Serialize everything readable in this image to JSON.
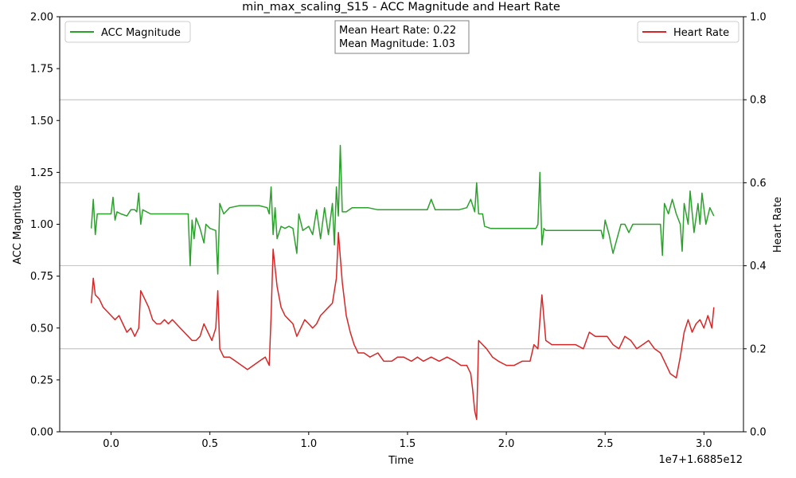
{
  "chart_data": {
    "type": "line",
    "title": "min_max_scaling_S15 - ACC Magnitude and Heart Rate",
    "xlabel": "Time",
    "x_offset_label": "1e7+1.6885e12",
    "ylabel_left": "ACC Magnitude",
    "ylabel_right": "Heart Rate",
    "xlim": [
      -0.26,
      3.2
    ],
    "ylim_left": [
      0,
      2.0
    ],
    "ylim_right": [
      0,
      1.0
    ],
    "x_ticks": [
      0.0,
      0.5,
      1.0,
      1.5,
      2.0,
      2.5,
      3.0
    ],
    "x_tick_labels": [
      "0.0",
      "0.5",
      "1.0",
      "1.5",
      "2.0",
      "2.5",
      "3.0"
    ],
    "y_left_ticks": [
      0.0,
      0.25,
      0.5,
      0.75,
      1.0,
      1.25,
      1.5,
      1.75,
      2.0
    ],
    "y_left_tick_labels": [
      "0.00",
      "0.25",
      "0.50",
      "0.75",
      "1.00",
      "1.25",
      "1.50",
      "1.75",
      "2.00"
    ],
    "y_right_ticks": [
      0.0,
      0.2,
      0.4,
      0.6,
      0.8,
      1.0
    ],
    "y_right_tick_labels": [
      "0.0",
      "0.2",
      "0.4",
      "0.6",
      "0.8",
      "1.0"
    ],
    "grid": "horizontal lines at right-axis ticks",
    "annotation": {
      "lines": [
        "Mean Heart Rate: 0.22",
        "Mean Magnitude: 1.03"
      ],
      "placement": "top-center"
    },
    "series": [
      {
        "name": "ACC Magnitude",
        "axis": "left",
        "color": "#2ca02c",
        "legend_placement": "top-left",
        "points": [
          [
            -0.1,
            0.98
          ],
          [
            -0.09,
            1.12
          ],
          [
            -0.08,
            0.95
          ],
          [
            -0.07,
            1.05
          ],
          [
            -0.04,
            1.05
          ],
          [
            0.0,
            1.05
          ],
          [
            0.01,
            1.13
          ],
          [
            0.02,
            1.02
          ],
          [
            0.03,
            1.06
          ],
          [
            0.05,
            1.05
          ],
          [
            0.08,
            1.04
          ],
          [
            0.1,
            1.07
          ],
          [
            0.12,
            1.07
          ],
          [
            0.13,
            1.06
          ],
          [
            0.14,
            1.15
          ],
          [
            0.15,
            1.0
          ],
          [
            0.16,
            1.07
          ],
          [
            0.2,
            1.05
          ],
          [
            0.25,
            1.05
          ],
          [
            0.3,
            1.05
          ],
          [
            0.35,
            1.05
          ],
          [
            0.39,
            1.05
          ],
          [
            0.4,
            0.8
          ],
          [
            0.41,
            1.02
          ],
          [
            0.42,
            0.93
          ],
          [
            0.43,
            1.03
          ],
          [
            0.45,
            0.98
          ],
          [
            0.47,
            0.91
          ],
          [
            0.48,
            1.0
          ],
          [
            0.5,
            0.98
          ],
          [
            0.53,
            0.97
          ],
          [
            0.54,
            0.76
          ],
          [
            0.55,
            1.1
          ],
          [
            0.57,
            1.05
          ],
          [
            0.6,
            1.08
          ],
          [
            0.65,
            1.09
          ],
          [
            0.7,
            1.09
          ],
          [
            0.75,
            1.09
          ],
          [
            0.79,
            1.08
          ],
          [
            0.8,
            1.05
          ],
          [
            0.81,
            1.18
          ],
          [
            0.82,
            0.95
          ],
          [
            0.83,
            1.08
          ],
          [
            0.84,
            0.93
          ],
          [
            0.86,
            0.99
          ],
          [
            0.88,
            0.98
          ],
          [
            0.9,
            0.99
          ],
          [
            0.92,
            0.98
          ],
          [
            0.94,
            0.86
          ],
          [
            0.95,
            1.05
          ],
          [
            0.97,
            0.97
          ],
          [
            1.0,
            0.99
          ],
          [
            1.02,
            0.95
          ],
          [
            1.04,
            1.07
          ],
          [
            1.06,
            0.93
          ],
          [
            1.08,
            1.08
          ],
          [
            1.1,
            0.95
          ],
          [
            1.12,
            1.1
          ],
          [
            1.13,
            0.9
          ],
          [
            1.14,
            1.18
          ],
          [
            1.15,
            1.04
          ],
          [
            1.16,
            1.38
          ],
          [
            1.17,
            1.06
          ],
          [
            1.19,
            1.06
          ],
          [
            1.22,
            1.08
          ],
          [
            1.26,
            1.08
          ],
          [
            1.3,
            1.08
          ],
          [
            1.35,
            1.07
          ],
          [
            1.4,
            1.07
          ],
          [
            1.45,
            1.07
          ],
          [
            1.5,
            1.07
          ],
          [
            1.55,
            1.07
          ],
          [
            1.6,
            1.07
          ],
          [
            1.62,
            1.12
          ],
          [
            1.64,
            1.07
          ],
          [
            1.7,
            1.07
          ],
          [
            1.76,
            1.07
          ],
          [
            1.8,
            1.08
          ],
          [
            1.82,
            1.12
          ],
          [
            1.84,
            1.06
          ],
          [
            1.85,
            1.2
          ],
          [
            1.86,
            1.05
          ],
          [
            1.88,
            1.05
          ],
          [
            1.89,
            0.99
          ],
          [
            1.92,
            0.98
          ],
          [
            1.95,
            0.98
          ],
          [
            1.98,
            0.98
          ],
          [
            2.0,
            0.98
          ],
          [
            2.05,
            0.98
          ],
          [
            2.1,
            0.98
          ],
          [
            2.15,
            0.98
          ],
          [
            2.16,
            1.0
          ],
          [
            2.17,
            1.25
          ],
          [
            2.18,
            0.9
          ],
          [
            2.19,
            0.98
          ],
          [
            2.2,
            0.97
          ],
          [
            2.25,
            0.97
          ],
          [
            2.3,
            0.97
          ],
          [
            2.35,
            0.97
          ],
          [
            2.4,
            0.97
          ],
          [
            2.45,
            0.97
          ],
          [
            2.48,
            0.97
          ],
          [
            2.49,
            0.93
          ],
          [
            2.5,
            1.02
          ],
          [
            2.52,
            0.95
          ],
          [
            2.54,
            0.86
          ],
          [
            2.56,
            0.93
          ],
          [
            2.58,
            1.0
          ],
          [
            2.6,
            1.0
          ],
          [
            2.62,
            0.96
          ],
          [
            2.64,
            1.0
          ],
          [
            2.66,
            1.0
          ],
          [
            2.7,
            1.0
          ],
          [
            2.75,
            1.0
          ],
          [
            2.78,
            1.0
          ],
          [
            2.79,
            0.85
          ],
          [
            2.8,
            1.1
          ],
          [
            2.82,
            1.05
          ],
          [
            2.84,
            1.12
          ],
          [
            2.86,
            1.05
          ],
          [
            2.88,
            1.0
          ],
          [
            2.89,
            0.87
          ],
          [
            2.9,
            1.1
          ],
          [
            2.92,
            1.0
          ],
          [
            2.93,
            1.16
          ],
          [
            2.95,
            0.96
          ],
          [
            2.97,
            1.1
          ],
          [
            2.98,
            1.0
          ],
          [
            2.99,
            1.15
          ],
          [
            3.01,
            1.0
          ],
          [
            3.03,
            1.08
          ],
          [
            3.05,
            1.04
          ]
        ]
      },
      {
        "name": "Heart Rate",
        "axis": "right",
        "color": "#d62728",
        "legend_placement": "top-right",
        "points": [
          [
            -0.1,
            0.31
          ],
          [
            -0.09,
            0.37
          ],
          [
            -0.08,
            0.33
          ],
          [
            -0.06,
            0.32
          ],
          [
            -0.04,
            0.3
          ],
          [
            -0.02,
            0.29
          ],
          [
            0.0,
            0.28
          ],
          [
            0.02,
            0.27
          ],
          [
            0.04,
            0.28
          ],
          [
            0.06,
            0.26
          ],
          [
            0.08,
            0.24
          ],
          [
            0.1,
            0.25
          ],
          [
            0.12,
            0.23
          ],
          [
            0.14,
            0.25
          ],
          [
            0.15,
            0.34
          ],
          [
            0.17,
            0.32
          ],
          [
            0.19,
            0.3
          ],
          [
            0.21,
            0.27
          ],
          [
            0.23,
            0.26
          ],
          [
            0.25,
            0.26
          ],
          [
            0.27,
            0.27
          ],
          [
            0.29,
            0.26
          ],
          [
            0.31,
            0.27
          ],
          [
            0.33,
            0.26
          ],
          [
            0.35,
            0.25
          ],
          [
            0.37,
            0.24
          ],
          [
            0.39,
            0.23
          ],
          [
            0.41,
            0.22
          ],
          [
            0.43,
            0.22
          ],
          [
            0.45,
            0.23
          ],
          [
            0.47,
            0.26
          ],
          [
            0.49,
            0.24
          ],
          [
            0.51,
            0.22
          ],
          [
            0.53,
            0.25
          ],
          [
            0.54,
            0.34
          ],
          [
            0.55,
            0.2
          ],
          [
            0.57,
            0.18
          ],
          [
            0.6,
            0.18
          ],
          [
            0.63,
            0.17
          ],
          [
            0.66,
            0.16
          ],
          [
            0.69,
            0.15
          ],
          [
            0.72,
            0.16
          ],
          [
            0.75,
            0.17
          ],
          [
            0.78,
            0.18
          ],
          [
            0.8,
            0.16
          ],
          [
            0.81,
            0.28
          ],
          [
            0.82,
            0.44
          ],
          [
            0.84,
            0.35
          ],
          [
            0.86,
            0.3
          ],
          [
            0.88,
            0.28
          ],
          [
            0.9,
            0.27
          ],
          [
            0.92,
            0.26
          ],
          [
            0.94,
            0.23
          ],
          [
            0.96,
            0.25
          ],
          [
            0.98,
            0.27
          ],
          [
            1.0,
            0.26
          ],
          [
            1.02,
            0.25
          ],
          [
            1.04,
            0.26
          ],
          [
            1.06,
            0.28
          ],
          [
            1.08,
            0.29
          ],
          [
            1.1,
            0.3
          ],
          [
            1.12,
            0.31
          ],
          [
            1.14,
            0.37
          ],
          [
            1.15,
            0.48
          ],
          [
            1.17,
            0.36
          ],
          [
            1.19,
            0.28
          ],
          [
            1.21,
            0.24
          ],
          [
            1.23,
            0.21
          ],
          [
            1.25,
            0.19
          ],
          [
            1.28,
            0.19
          ],
          [
            1.31,
            0.18
          ],
          [
            1.35,
            0.19
          ],
          [
            1.38,
            0.17
          ],
          [
            1.42,
            0.17
          ],
          [
            1.45,
            0.18
          ],
          [
            1.48,
            0.18
          ],
          [
            1.52,
            0.17
          ],
          [
            1.55,
            0.18
          ],
          [
            1.58,
            0.17
          ],
          [
            1.62,
            0.18
          ],
          [
            1.66,
            0.17
          ],
          [
            1.7,
            0.18
          ],
          [
            1.74,
            0.17
          ],
          [
            1.77,
            0.16
          ],
          [
            1.8,
            0.16
          ],
          [
            1.82,
            0.14
          ],
          [
            1.83,
            0.1
          ],
          [
            1.84,
            0.05
          ],
          [
            1.85,
            0.03
          ],
          [
            1.86,
            0.22
          ],
          [
            1.88,
            0.21
          ],
          [
            1.9,
            0.2
          ],
          [
            1.93,
            0.18
          ],
          [
            1.96,
            0.17
          ],
          [
            2.0,
            0.16
          ],
          [
            2.04,
            0.16
          ],
          [
            2.08,
            0.17
          ],
          [
            2.12,
            0.17
          ],
          [
            2.14,
            0.21
          ],
          [
            2.16,
            0.2
          ],
          [
            2.17,
            0.27
          ],
          [
            2.18,
            0.33
          ],
          [
            2.2,
            0.22
          ],
          [
            2.23,
            0.21
          ],
          [
            2.27,
            0.21
          ],
          [
            2.31,
            0.21
          ],
          [
            2.35,
            0.21
          ],
          [
            2.39,
            0.2
          ],
          [
            2.42,
            0.24
          ],
          [
            2.45,
            0.23
          ],
          [
            2.48,
            0.23
          ],
          [
            2.51,
            0.23
          ],
          [
            2.54,
            0.21
          ],
          [
            2.57,
            0.2
          ],
          [
            2.6,
            0.23
          ],
          [
            2.63,
            0.22
          ],
          [
            2.66,
            0.2
          ],
          [
            2.69,
            0.21
          ],
          [
            2.72,
            0.22
          ],
          [
            2.75,
            0.2
          ],
          [
            2.78,
            0.19
          ],
          [
            2.8,
            0.17
          ],
          [
            2.83,
            0.14
          ],
          [
            2.86,
            0.13
          ],
          [
            2.88,
            0.18
          ],
          [
            2.9,
            0.24
          ],
          [
            2.92,
            0.27
          ],
          [
            2.94,
            0.24
          ],
          [
            2.96,
            0.26
          ],
          [
            2.98,
            0.27
          ],
          [
            3.0,
            0.25
          ],
          [
            3.02,
            0.28
          ],
          [
            3.04,
            0.25
          ],
          [
            3.05,
            0.3
          ]
        ]
      }
    ]
  }
}
